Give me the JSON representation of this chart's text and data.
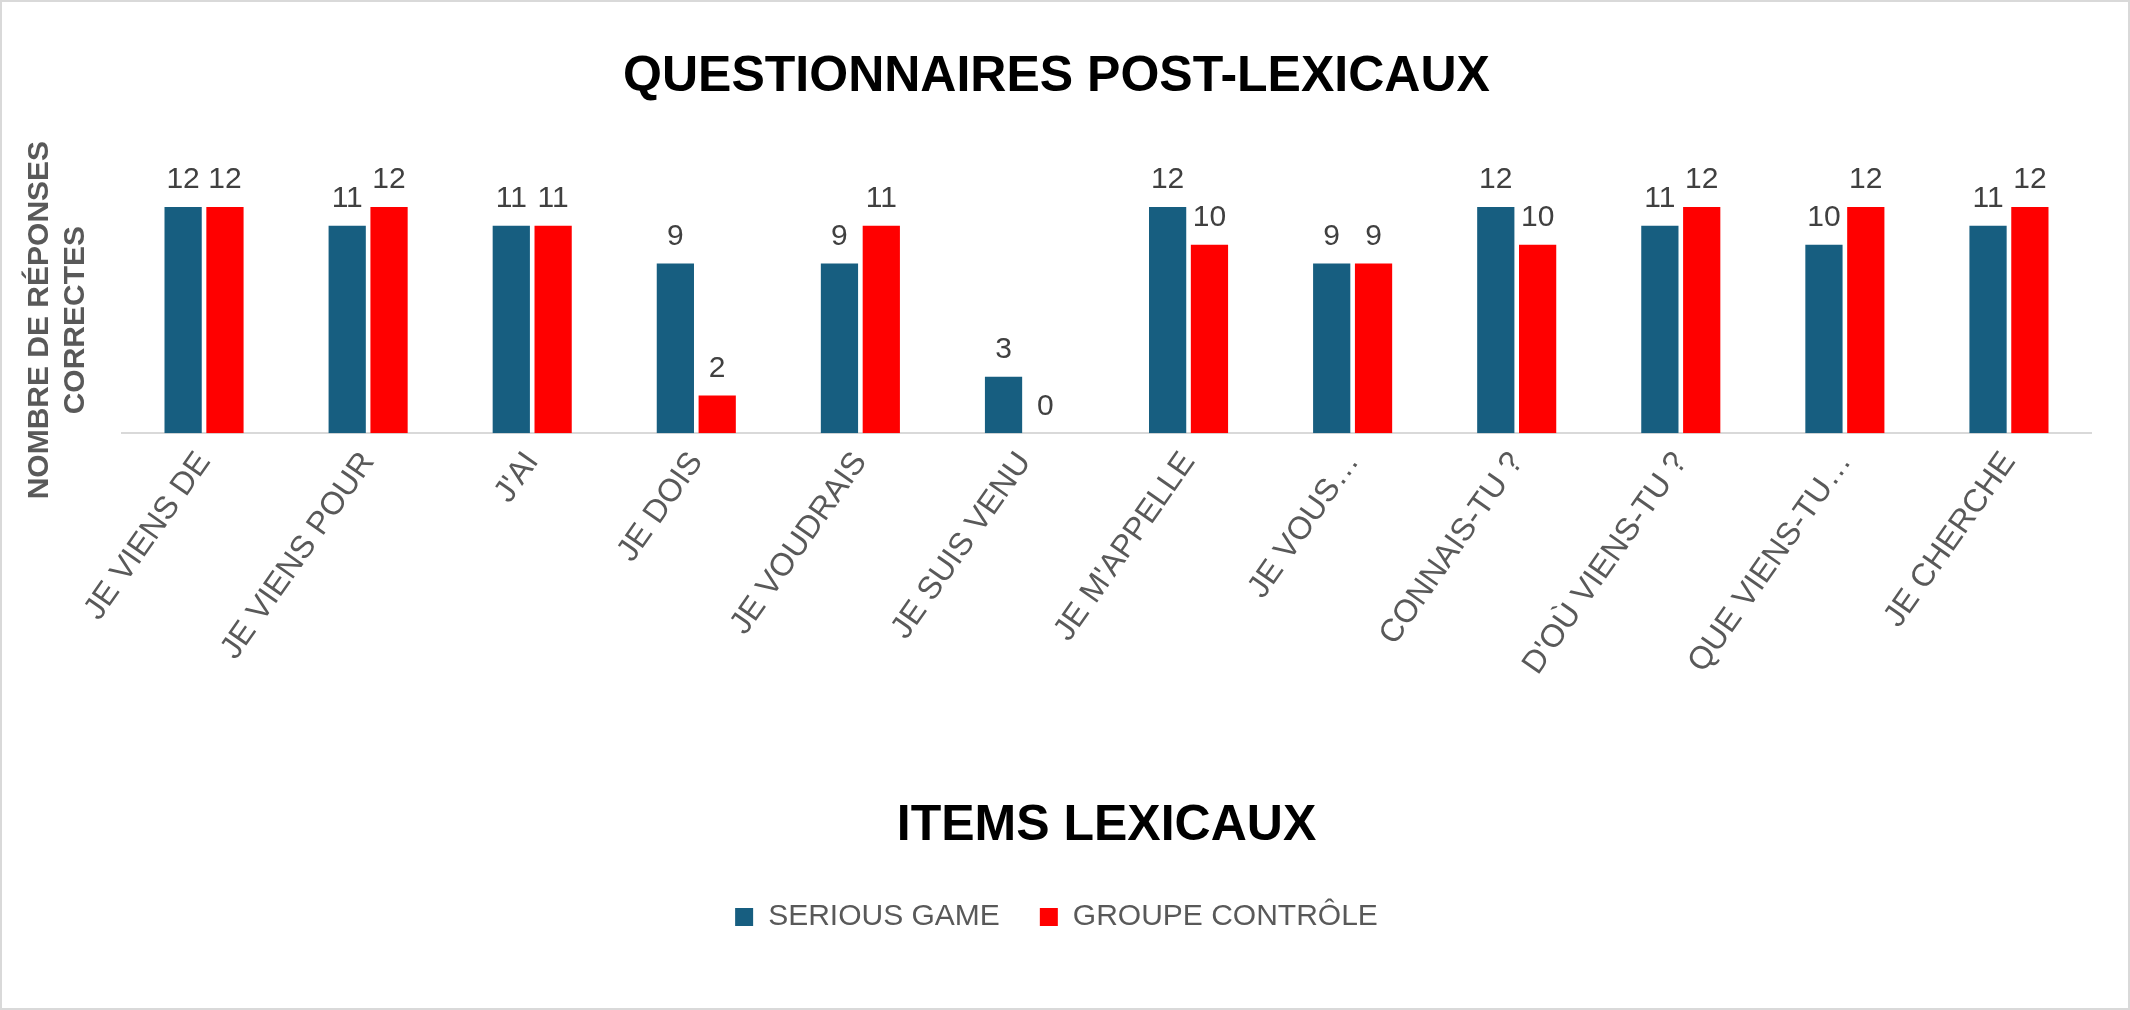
{
  "chart_data": {
    "type": "bar",
    "title": "QUESTIONNAIRES POST-LEXICAUX",
    "xlabel": "ITEMS LEXICAUX",
    "ylabel": "NOMBRE DE RÉPONSES CORRECTES",
    "categories": [
      "JE VIENS DE",
      "JE VIENS POUR",
      "J'AI",
      "JE DOIS",
      "JE VOUDRAIS",
      "JE SUIS VENU",
      "JE M'APPELLE",
      "JE VOUS…",
      "CONNAIS-TU ?",
      "D'OÙ VIENS-TU ?",
      "QUE VIENS-TU…",
      "JE CHERCHE"
    ],
    "series": [
      {
        "name": "SERIOUS GAME",
        "color": "#175e80",
        "values": [
          12,
          11,
          11,
          9,
          9,
          3,
          12,
          9,
          12,
          11,
          10,
          11
        ]
      },
      {
        "name": "GROUPE CONTRÔLE",
        "color": "#ff0000",
        "values": [
          12,
          12,
          11,
          2,
          11,
          0,
          10,
          9,
          10,
          12,
          12,
          12
        ]
      }
    ],
    "data_labels": true,
    "legend": "bottom",
    "grid": false,
    "tick_labels": "x"
  }
}
